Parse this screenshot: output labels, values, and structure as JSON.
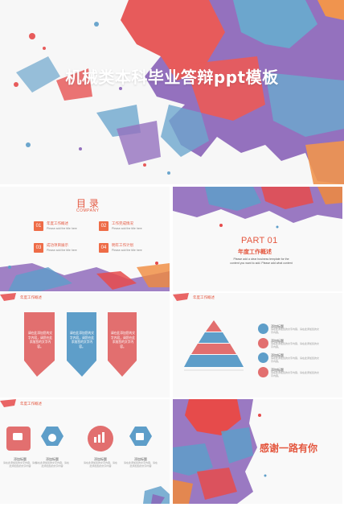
{
  "cover": {
    "title": "机械类本科毕业答辩ppt模板"
  },
  "toc": {
    "title": "目 录",
    "subtitle": "COMPANY",
    "items": [
      {
        "num": "01",
        "label": "年度工作概述",
        "desc": "Please add the title here"
      },
      {
        "num": "02",
        "label": "工作完成情况",
        "desc": "Please add the title here"
      },
      {
        "num": "03",
        "label": "成功项目展示",
        "desc": "Please add the title here"
      },
      {
        "num": "04",
        "label": "明年工作计划",
        "desc": "Please add the title here"
      }
    ]
  },
  "part": {
    "number": "PART 01",
    "title": "年度工作概述",
    "desc": "Please add a clear business template for the content you want to add. Please add what content"
  },
  "chevrons": {
    "heading": "年度工作概述",
    "items": [
      {
        "text": "请在此添加您的文字内容，请您在此添加您的文字内容。",
        "color": "#e26f6f"
      },
      {
        "text": "请在此添加您的文字内容，请您在此添加您的文字内容。",
        "color": "#5e9ec9"
      },
      {
        "text": "请在此添加您的文字内容，请您在此添加您的文字内容。",
        "color": "#e26f6f"
      }
    ]
  },
  "pyramid": {
    "heading": "年度工作概述",
    "items": [
      {
        "title": "添加标题",
        "desc": "请在此添加您的文字内容，请在此添加您的文字内容。",
        "icon": "location-icon",
        "color": "#5e9ec9"
      },
      {
        "title": "添加标题",
        "desc": "请在此添加您的文字内容，请在此添加您的文字内容。",
        "icon": "mail-icon",
        "color": "#e26f6f"
      },
      {
        "title": "添加标题",
        "desc": "请在此添加您的文字内容，请在此添加您的文字内容。",
        "icon": "chat-icon",
        "color": "#5e9ec9"
      },
      {
        "title": "添加标题",
        "desc": "请在此添加您的文字内容，请在此添加您的文字内容。",
        "icon": "user-icon",
        "color": "#e26f6f"
      }
    ]
  },
  "icons": {
    "heading": "年度工作概述",
    "items": [
      {
        "title": "添加标题",
        "desc": "请在此添加您的文字内容，请在此添加您的文字内容",
        "icon": "chat-icon",
        "color": "#e26f6f"
      },
      {
        "title": "添加标题",
        "desc": "请在此添加您的文字内容，请在此添加您的文字内容",
        "icon": "money-bag-icon",
        "color": "#5e9ec9"
      },
      {
        "title": "添加标题",
        "desc": "请在此添加您的文字内容，请在此添加您的文字内容",
        "icon": "bar-chart-icon",
        "color": "#e26f6f"
      },
      {
        "title": "添加标题",
        "desc": "请在此添加您的文字内容，请在此添加您的文字内容",
        "icon": "thumbs-up-icon",
        "color": "#5e9ec9"
      }
    ]
  },
  "thanks": {
    "text": "感谢一路有你"
  },
  "colors": {
    "red": "#e4573f",
    "blue": "#5e9ec9",
    "purple": "#8a63b8",
    "orange": "#f08a3c"
  }
}
